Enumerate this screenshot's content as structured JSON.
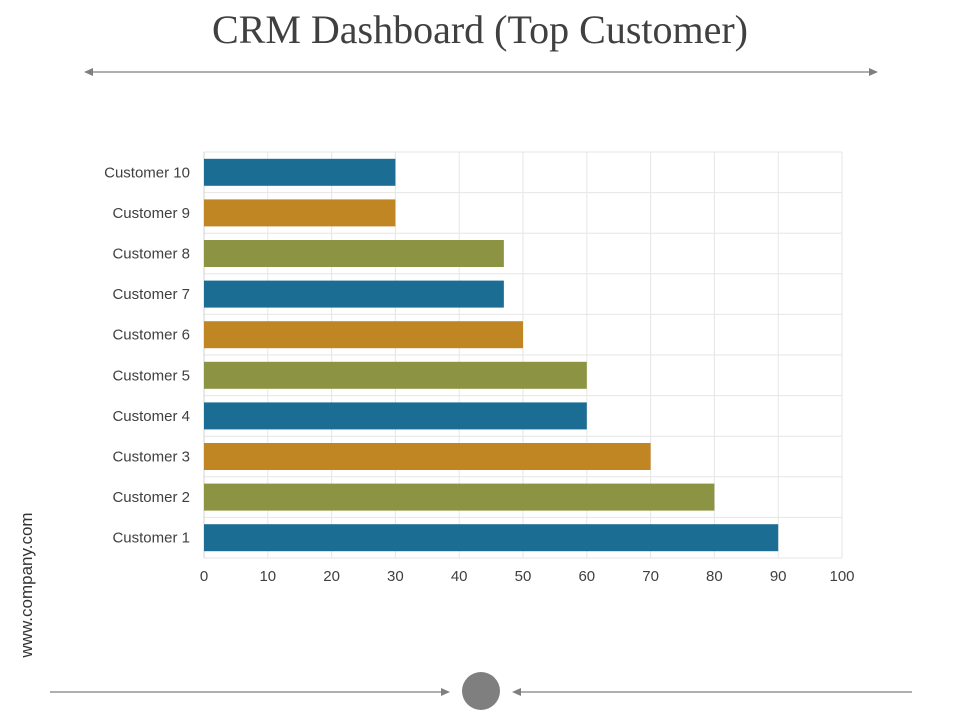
{
  "header": {
    "title": "CRM Dashboard (Top Customer)"
  },
  "footer": {
    "watermark": "www.company.com"
  },
  "colors": {
    "blue": "#1b6d93",
    "orange": "#c08623",
    "olive": "#8c9443",
    "grid": "#e6e6e6",
    "text": "#404040"
  },
  "chart_data": {
    "type": "bar",
    "orientation": "horizontal",
    "title": "",
    "xlabel": "",
    "ylabel": "",
    "xlim": [
      0,
      100
    ],
    "xticks": [
      0,
      10,
      20,
      30,
      40,
      50,
      60,
      70,
      80,
      90,
      100
    ],
    "grid": true,
    "categories": [
      "Customer 10",
      "Customer 9",
      "Customer 8",
      "Customer 7",
      "Customer 6",
      "Customer 5",
      "Customer 4",
      "Customer 3",
      "Customer 2",
      "Customer 1"
    ],
    "values": [
      30,
      30,
      47,
      47,
      50,
      60,
      60,
      70,
      80,
      90
    ],
    "bar_colors": [
      "#1b6d93",
      "#c08623",
      "#8c9443",
      "#1b6d93",
      "#c08623",
      "#8c9443",
      "#1b6d93",
      "#c08623",
      "#8c9443",
      "#1b6d93"
    ]
  }
}
